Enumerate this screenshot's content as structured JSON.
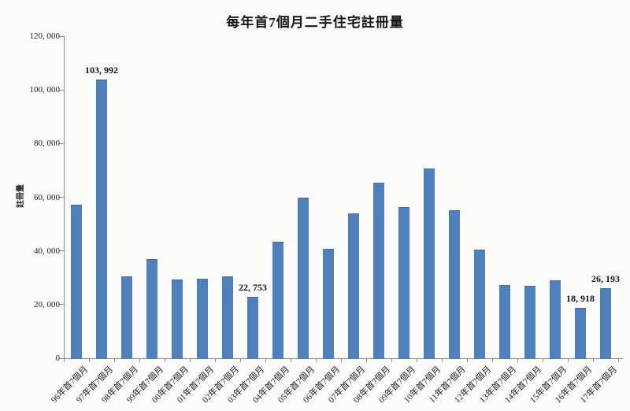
{
  "figure": {
    "background_color": "#fbfbfa",
    "bar_color": "#4d80bc",
    "bar_border_color": "#41709f",
    "axis_color": "#8a8a8a",
    "text_color": "#1c1c1c"
  },
  "chart_data": {
    "type": "bar",
    "title": "每年首7個月二手住宅註冊量",
    "xlabel": "",
    "ylabel": "註冊量",
    "ylim": [
      0,
      120000
    ],
    "y_tick_interval": 20000,
    "y_tick_labels": [
      "0",
      "20, 000",
      "40, 000",
      "60, 000",
      "80, 000",
      "100, 000",
      "120, 000"
    ],
    "grid": false,
    "legend": null,
    "categories": [
      "96年首7個月",
      "97年首7個月",
      "98年首7個月",
      "99年首7個月",
      "00年首7個月",
      "01年首7個月",
      "02年首7個月",
      "03年首7個月",
      "04年首7個月",
      "05年首7個月",
      "06年首7個月",
      "07年首7個月",
      "08年首7個月",
      "09年首7個月",
      "10年首7個月",
      "11年首7個月",
      "12年首7個月",
      "13年首7個月",
      "14年首7個月",
      "15年首7個月",
      "16年首7個月",
      "17年首7個月"
    ],
    "values": [
      57200,
      103992,
      30600,
      37000,
      29300,
      29500,
      30600,
      22753,
      43500,
      59900,
      40800,
      54100,
      65300,
      56200,
      70600,
      55100,
      40600,
      27400,
      26900,
      29000,
      18918,
      26193
    ],
    "data_labels": [
      {
        "index": 1,
        "text": "103, 992"
      },
      {
        "index": 7,
        "text": "22, 753"
      },
      {
        "index": 20,
        "text": "18, 918"
      },
      {
        "index": 21,
        "text": "26, 193"
      }
    ]
  }
}
